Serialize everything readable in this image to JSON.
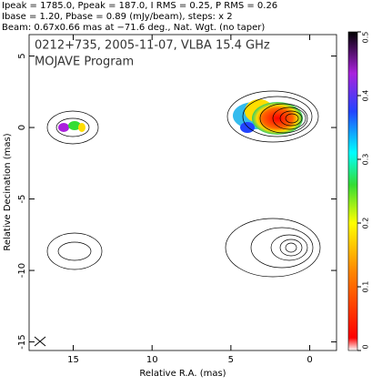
{
  "header": {
    "lines": [
      "Ipeak = 1785.0, Ppeak = 187.0, I RMS = 0.25, P RMS = 0.26",
      "Ibase = 1.20, Pbase = 0.89 (mJy/beam), steps: x 2",
      "Beam: 0.67x0.66 mas at −71.6 deg., Nat. Wgt. (no taper)"
    ]
  },
  "chart_data": {
    "type": "contour",
    "title": "0212+735, 2005-11-07, VLBA 15.4 GHz",
    "subtitle": "MOJAVE Program",
    "x_label": "Relative R.A. (mas)",
    "y_label": "Relative Decination (mas)",
    "xlim": [
      17.8,
      -1.7
    ],
    "ylim": [
      -15.6,
      6.5
    ],
    "xticks": [
      15,
      10,
      5,
      0
    ],
    "yticks": [
      5,
      0,
      -5,
      -10,
      -15
    ],
    "colorbar": {
      "lim": [
        0,
        0.5
      ],
      "ticks": [
        0,
        0.1,
        0.2,
        0.3,
        0.4,
        0.5
      ]
    }
  }
}
